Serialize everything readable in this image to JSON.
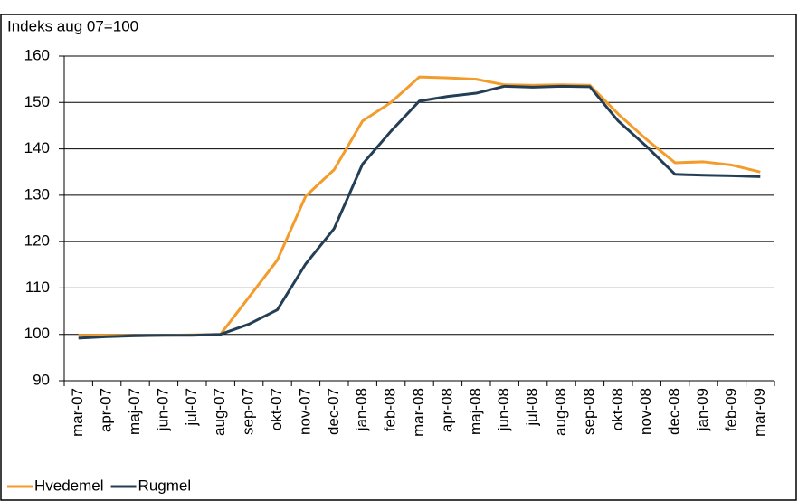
{
  "chart_data": {
    "type": "line",
    "title": "Indeks aug 07=100",
    "categories": [
      "mar-07",
      "apr-07",
      "maj-07",
      "jun-07",
      "jul-07",
      "aug-07",
      "sep-07",
      "okt-07",
      "nov-07",
      "dec-07",
      "jan-08",
      "feb-08",
      "mar-08",
      "apr-08",
      "maj-08",
      "jun-08",
      "jul-08",
      "aug-08",
      "sep-08",
      "okt-08",
      "nov-08",
      "dec-08",
      "jan-09",
      "feb-09",
      "mar-09"
    ],
    "series": [
      {
        "name": "Hvedemel",
        "color": "#f39c2b",
        "values": [
          99.8,
          99.8,
          99.7,
          99.8,
          99.9,
          100,
          108,
          116,
          129.8,
          135.5,
          146,
          150,
          155.5,
          155.3,
          155,
          153.8,
          153.7,
          153.8,
          153.7,
          147.5,
          142,
          137,
          137.2,
          136.5,
          135
        ]
      },
      {
        "name": "Rugmel",
        "color": "#243f55",
        "values": [
          99.2,
          99.5,
          99.7,
          99.8,
          99.8,
          100,
          102.2,
          105.3,
          115.2,
          122.8,
          136.7,
          143.8,
          150.3,
          151.3,
          152,
          153.5,
          153.3,
          153.5,
          153.4,
          146,
          140.5,
          134.5,
          134.3,
          134.2,
          134
        ]
      }
    ],
    "ylim": [
      90,
      160
    ],
    "yticks": [
      90,
      100,
      110,
      120,
      130,
      140,
      150,
      160
    ],
    "grid": true,
    "legend": "bottom-left"
  }
}
